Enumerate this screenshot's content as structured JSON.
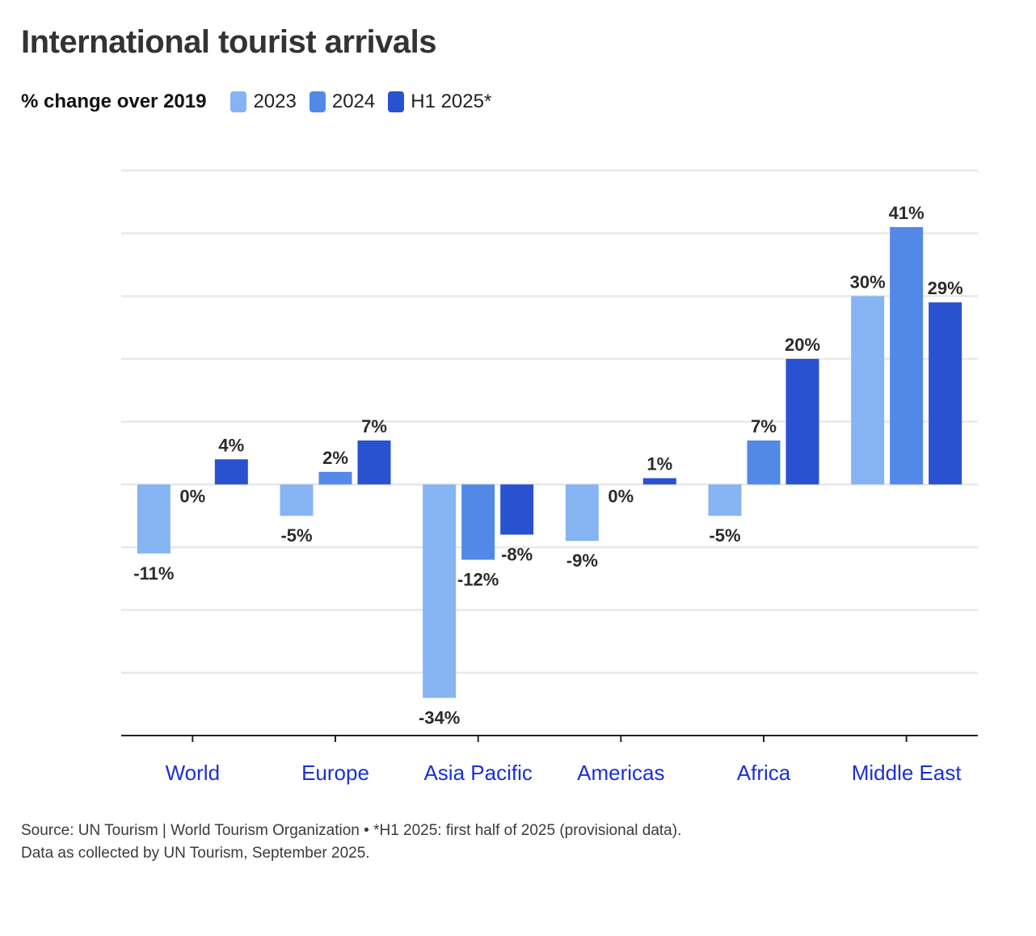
{
  "title": "International tourist arrivals",
  "subtitle": "% change over 2019",
  "colors": {
    "series_2023": "#86b4f2",
    "series_2024": "#5289e6",
    "series_h1_2025": "#2952d1",
    "category_label": "#1a2fd6",
    "grid": "#e8e8e8",
    "axis": "#222222",
    "value_label": "#2b2b2b"
  },
  "chart_data": {
    "type": "bar",
    "categories": [
      "World",
      "Europe",
      "Asia Pacific",
      "Americas",
      "Africa",
      "Middle East"
    ],
    "series": [
      {
        "name": "2023",
        "values": [
          -11,
          -5,
          -34,
          -9,
          -5,
          30
        ]
      },
      {
        "name": "2024",
        "values": [
          0,
          2,
          -12,
          0,
          7,
          41
        ]
      },
      {
        "name": "H1 2025*",
        "values": [
          4,
          7,
          -8,
          1,
          20,
          29
        ]
      }
    ],
    "title": "International tourist arrivals",
    "ylabel": "% change over 2019",
    "ylim": [
      -40,
      50
    ],
    "grid": true,
    "legend": "top-left",
    "value_suffix": "%"
  },
  "notes": {
    "line1": "Source: UN Tourism | World Tourism Organization • *H1 2025: first half of 2025 (provisional data).",
    "line2": "Data as collected by UN Tourism, September 2025."
  }
}
